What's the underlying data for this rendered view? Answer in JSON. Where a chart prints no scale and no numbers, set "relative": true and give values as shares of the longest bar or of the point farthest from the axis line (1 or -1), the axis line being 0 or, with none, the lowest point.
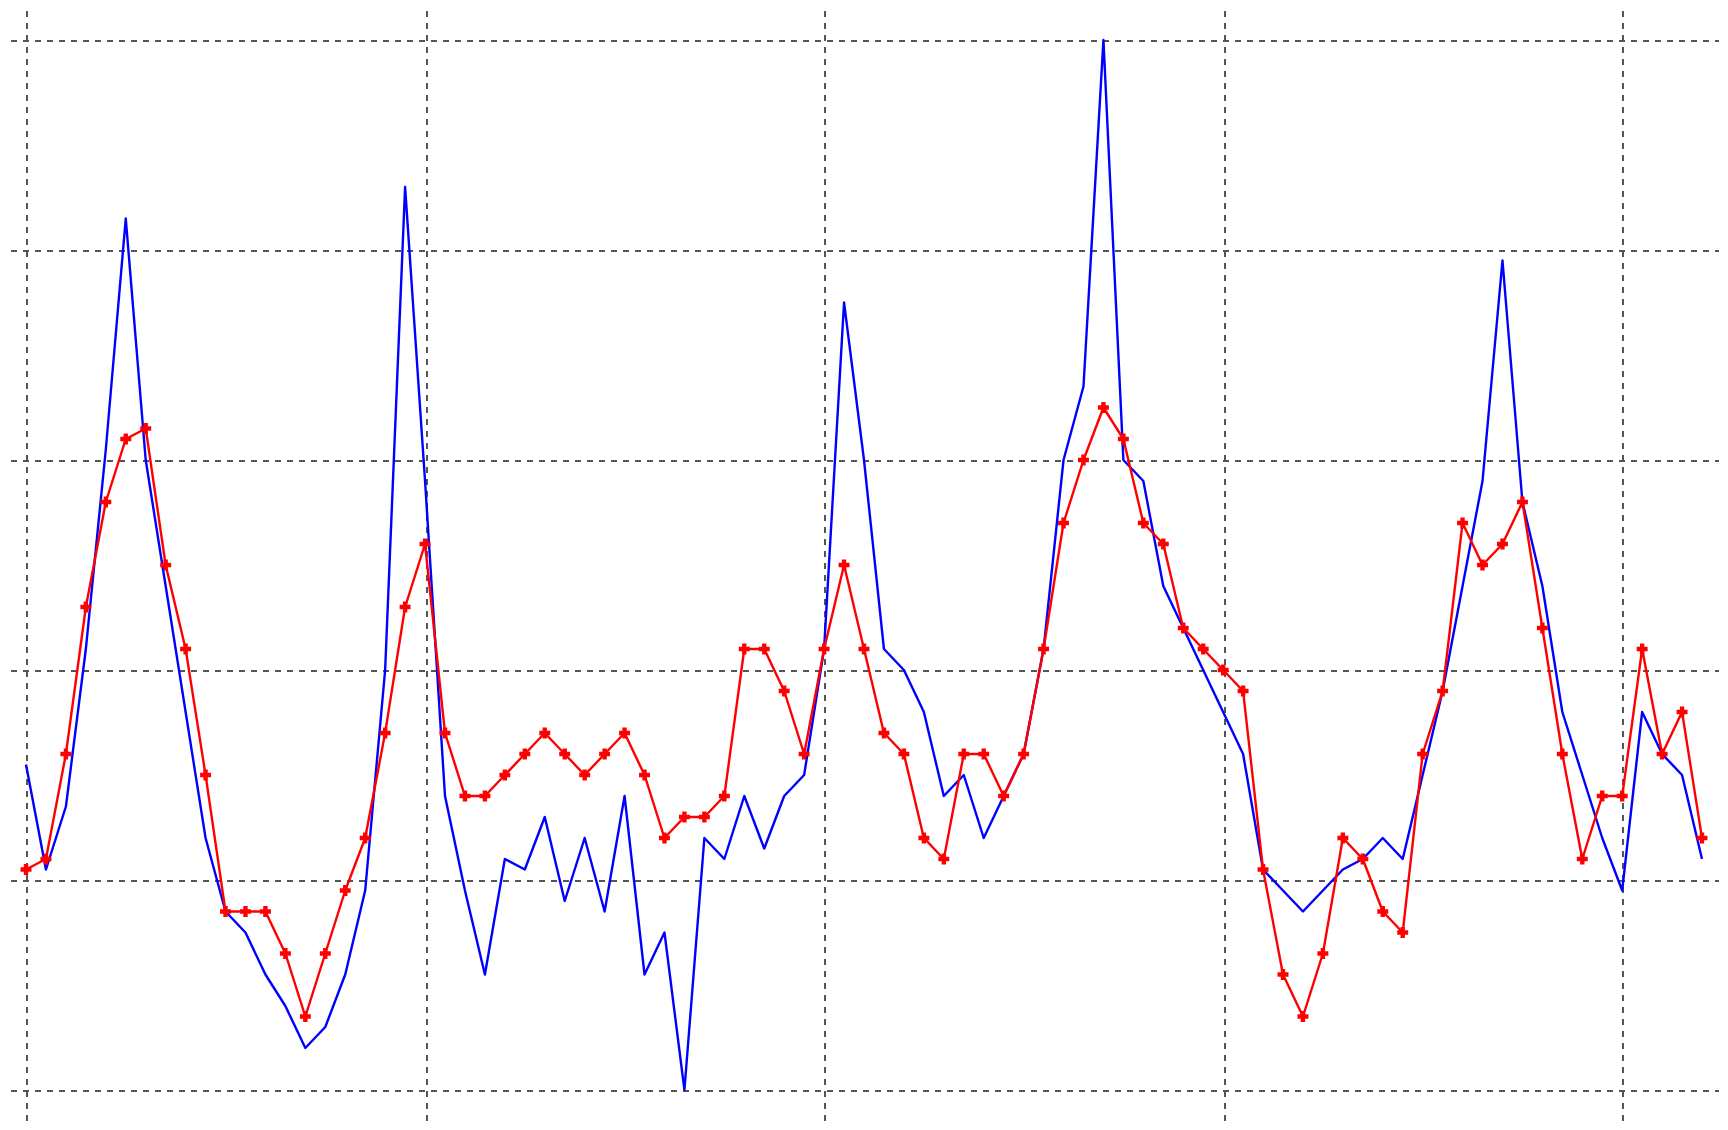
{
  "chart_data": {
    "type": "line",
    "relative": true,
    "grid": true,
    "categories": [
      null,
      null,
      null,
      null,
      null,
      null,
      null,
      null,
      null,
      null,
      null,
      null,
      null,
      null,
      null,
      null,
      null,
      null,
      null,
      null,
      null,
      null,
      null,
      null,
      null,
      null,
      null,
      null,
      null,
      null,
      null,
      null,
      null,
      null,
      null,
      null,
      null,
      null,
      null,
      null,
      null,
      null,
      null,
      null,
      null,
      null,
      null,
      null,
      null,
      null,
      null,
      null,
      null,
      null,
      null,
      null,
      null,
      null,
      null,
      null,
      null,
      null,
      null,
      null,
      null,
      null,
      null,
      null,
      null,
      null,
      null,
      null,
      null,
      null,
      null,
      null,
      null,
      null,
      null,
      null,
      null,
      null,
      null,
      null,
      null
    ],
    "series": [
      {
        "color": "#0000ff",
        "values": [
          0.31,
          0.21,
          0.27,
          0.42,
          0.61,
          0.83,
          0.6,
          0.48,
          0.36,
          0.24,
          0.17,
          0.15,
          0.11,
          0.08,
          0.04,
          0.06,
          0.11,
          0.19,
          0.4,
          0.86,
          0.58,
          0.28,
          0.19,
          0.11,
          0.22,
          0.21,
          0.26,
          0.18,
          0.24,
          0.17,
          0.28,
          0.11,
          0.15,
          0,
          0.24,
          0.22,
          0.28,
          0.23,
          0.28,
          0.3,
          0.42,
          0.75,
          0.6,
          0.42,
          0.4,
          0.36,
          0.28,
          0.3,
          0.24,
          0.28,
          0.32,
          0.42,
          0.6,
          0.67,
          1,
          0.6,
          0.58,
          0.48,
          0.44,
          0.4,
          0.36,
          0.32,
          0.21,
          0.19,
          0.17,
          0.19,
          0.21,
          0.22,
          0.24,
          0.22,
          0.3,
          0.38,
          0.48,
          0.58,
          0.79,
          0.56,
          0.48,
          0.36,
          0.3,
          0.24,
          0.19,
          0.36,
          0.32,
          0.3,
          0.22
        ]
      },
      {
        "marker": "cross",
        "color": "#ff0000",
        "values": [
          0.21,
          0.22,
          0.32,
          0.46,
          0.56,
          0.62,
          0.63,
          0.5,
          0.42,
          0.3,
          0.17,
          0.17,
          0.17,
          0.13,
          0.07,
          0.13,
          0.19,
          0.24,
          0.34,
          0.46,
          0.52,
          0.34,
          0.28,
          0.28,
          0.3,
          0.32,
          0.34,
          0.32,
          0.3,
          0.32,
          0.34,
          0.3,
          0.24,
          0.26,
          0.26,
          0.28,
          0.42,
          0.42,
          0.38,
          0.32,
          0.42,
          0.5,
          0.42,
          0.34,
          0.32,
          0.24,
          0.22,
          0.32,
          0.32,
          0.28,
          0.32,
          0.42,
          0.54,
          0.6,
          0.65,
          0.62,
          0.54,
          0.52,
          0.44,
          0.42,
          0.4,
          0.38,
          0.21,
          0.11,
          0.07,
          0.13,
          0.24,
          0.22,
          0.17,
          0.15,
          0.32,
          0.38,
          0.54,
          0.5,
          0.52,
          0.56,
          0.44,
          0.32,
          0.22,
          0.28,
          0.28,
          0.42,
          0.32,
          0.36,
          0.24
        ]
      }
    ]
  }
}
